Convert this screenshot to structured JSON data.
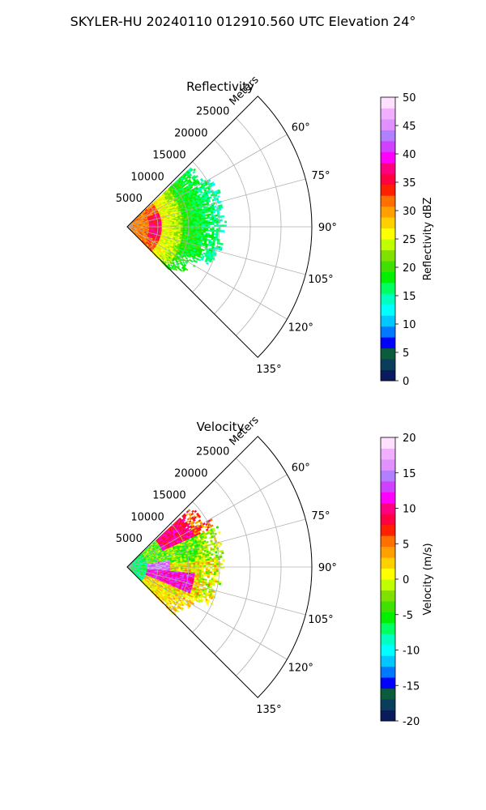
{
  "figure": {
    "title": "SKYLER-HU  20240110  012910.560 UTC Elevation 24°"
  },
  "chart_data": [
    {
      "type": "heatmap",
      "projection": "polar-sector",
      "title": "Reflectivity",
      "radial_axis_label": "Meters",
      "radial_ticks": [
        "5000",
        "10000",
        "15000",
        "20000",
        "25000"
      ],
      "radial_tick_values": [
        5000,
        10000,
        15000,
        20000,
        25000
      ],
      "radial_range": [
        0,
        30000
      ],
      "azimuth_range_deg": [
        45,
        135
      ],
      "azimuth_ticks": [
        "60°",
        "75°",
        "90°",
        "105°",
        "120°",
        "135°"
      ],
      "azimuth_tick_values": [
        60,
        75,
        90,
        105,
        120,
        135
      ],
      "grid": true,
      "data_extent": {
        "azimuth_deg": [
          47,
          135
        ],
        "range_m": [
          0,
          16000
        ]
      },
      "colorbar": {
        "label": "Reflectivity dBZ",
        "min": 0,
        "max": 50,
        "ticks": [
          "0",
          "5",
          "10",
          "15",
          "20",
          "25",
          "30",
          "35",
          "40",
          "45",
          "50"
        ],
        "colors": [
          "#0a1a5c",
          "#0a3d5c",
          "#0a5c3d",
          "#0000ff",
          "#0078ff",
          "#00c8ff",
          "#00ffff",
          "#00ffc0",
          "#00ff60",
          "#00f000",
          "#40e000",
          "#80e000",
          "#c0ff00",
          "#ffff00",
          "#ffd000",
          "#ffa000",
          "#ff7000",
          "#ff2000",
          "#ff0040",
          "#ff0080",
          "#ff00ff",
          "#d040ff",
          "#b080ff",
          "#e090ff",
          "#f0b0ff",
          "#ffe0ff"
        ]
      }
    },
    {
      "type": "heatmap",
      "projection": "polar-sector",
      "title": "Velocity",
      "radial_axis_label": "Meters",
      "radial_ticks": [
        "5000",
        "10000",
        "15000",
        "20000",
        "25000"
      ],
      "radial_tick_values": [
        5000,
        10000,
        15000,
        20000,
        25000
      ],
      "radial_range": [
        0,
        30000
      ],
      "azimuth_range_deg": [
        45,
        135
      ],
      "azimuth_ticks": [
        "60°",
        "75°",
        "90°",
        "105°",
        "120°",
        "135°"
      ],
      "azimuth_tick_values": [
        60,
        75,
        90,
        105,
        120,
        135
      ],
      "grid": true,
      "data_extent": {
        "azimuth_deg": [
          47,
          135
        ],
        "range_m": [
          0,
          16000
        ]
      },
      "colorbar": {
        "label": "Velocity (m/s)",
        "min": -20,
        "max": 20,
        "ticks": [
          "-20",
          "-15",
          "-10",
          "-5",
          "0",
          "5",
          "10",
          "15",
          "20"
        ],
        "colors": [
          "#0a1a5c",
          "#0a3d5c",
          "#0a5c3d",
          "#0000ff",
          "#0078ff",
          "#00c8ff",
          "#00ffff",
          "#00ffc0",
          "#00ff60",
          "#00f000",
          "#40e000",
          "#80e000",
          "#c0ff00",
          "#ffff00",
          "#ffd000",
          "#ffa000",
          "#ff7000",
          "#ff2000",
          "#ff0040",
          "#ff0080",
          "#ff00ff",
          "#d040ff",
          "#b080ff",
          "#e090ff",
          "#f0b0ff",
          "#ffe0ff"
        ]
      }
    }
  ]
}
